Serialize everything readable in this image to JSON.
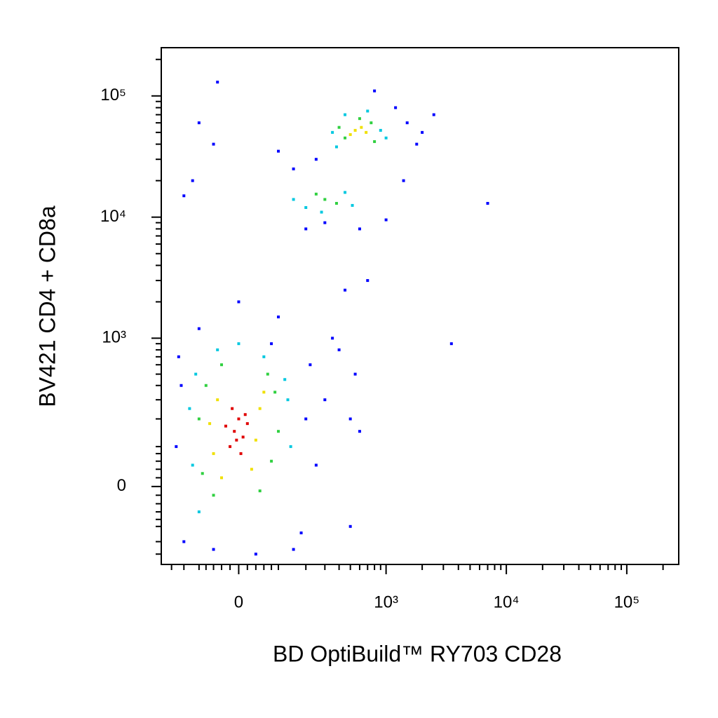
{
  "chart_data": {
    "type": "scatter",
    "x_label": "BD OptiBuild™ RY703 CD28",
    "y_label": "BV421 CD4 + CD8a",
    "scale": "biexponential",
    "cofactor": 120,
    "xlim": [
      -250,
      270000
    ],
    "ylim": [
      -250,
      250000
    ],
    "xticks": [
      0,
      {
        "value": 1000,
        "label": "10³"
      },
      {
        "value": 10000,
        "label": "10⁴"
      },
      {
        "value": 100000,
        "label": "10⁵"
      }
    ],
    "yticks": [
      0,
      {
        "value": 1000,
        "label": "10³"
      },
      {
        "value": 10000,
        "label": "10⁴"
      },
      {
        "value": 100000,
        "label": "10⁵"
      }
    ],
    "xminor_ticks": [
      -200,
      -150,
      -100,
      -80,
      -60,
      -40,
      -20,
      20,
      40,
      60,
      80,
      100,
      200,
      300,
      400,
      500,
      600,
      700,
      800,
      900,
      2000,
      3000,
      4000,
      5000,
      6000,
      7000,
      8000,
      9000,
      20000,
      30000,
      40000,
      50000,
      60000,
      70000,
      80000,
      90000,
      200000
    ],
    "yminor_ticks": [
      -200,
      -150,
      -100,
      -80,
      -60,
      -40,
      -20,
      20,
      40,
      60,
      80,
      100,
      200,
      300,
      400,
      500,
      600,
      700,
      800,
      900,
      2000,
      3000,
      4000,
      5000,
      6000,
      7000,
      8000,
      9000,
      20000,
      30000,
      40000,
      50000,
      60000,
      70000,
      80000,
      90000,
      200000
    ],
    "series": [
      {
        "color": "#0000ff",
        "x": [
          -180,
          -160,
          200,
          250,
          -150,
          180,
          -100,
          100,
          -60,
          40,
          0,
          80,
          -170,
          220,
          300,
          400,
          500,
          600,
          350,
          450,
          700,
          550,
          150,
          250,
          1200,
          1500,
          1800,
          200,
          -120,
          -100,
          300,
          600,
          1000,
          1400,
          2000,
          2500,
          800,
          -60,
          100,
          -150,
          7000,
          3500,
          500,
          150,
          -50
        ],
        "y": [
          100,
          400,
          200,
          50,
          -150,
          -120,
          1200,
          1500,
          -180,
          -200,
          2000,
          900,
          700,
          600,
          300,
          800,
          200,
          150,
          1000,
          2500,
          3000,
          500,
          25000,
          30000,
          80000,
          60000,
          40000,
          8000,
          20000,
          60000,
          9000,
          8000,
          9500,
          20000,
          50000,
          70000,
          110000,
          40000,
          35000,
          15000,
          13000,
          900,
          -100,
          -180,
          130000
        ]
      },
      {
        "color": "#00c8e0",
        "x": [
          -120,
          130,
          -110,
          140,
          -100,
          120,
          -50,
          60,
          0,
          -130,
          350,
          900,
          450,
          1000,
          380,
          700,
          200,
          450,
          280,
          150,
          520
        ],
        "y": [
          50,
          300,
          500,
          100,
          -60,
          450,
          800,
          700,
          900,
          250,
          50000,
          52000,
          70000,
          45000,
          38000,
          75000,
          12000,
          16000,
          11000,
          14000,
          12500
        ]
      },
      {
        "color": "#30d040",
        "x": [
          -90,
          80,
          -80,
          90,
          -100,
          100,
          -60,
          70,
          -40,
          50,
          450,
          750,
          400,
          800,
          600,
          300,
          380,
          250
        ],
        "y": [
          30,
          60,
          400,
          350,
          200,
          150,
          -20,
          500,
          600,
          -10,
          45000,
          60000,
          55000,
          42000,
          65000,
          14000,
          13000,
          15500
        ]
      },
      {
        "color": "#f0e000",
        "x": [
          -60,
          40,
          -50,
          50,
          -40,
          30,
          -70,
          60,
          550,
          620,
          500,
          680
        ],
        "y": [
          80,
          120,
          300,
          250,
          20,
          40,
          180,
          350,
          52000,
          55000,
          48000,
          50000
        ]
      },
      {
        "color": "#e00000",
        "x": [
          -20,
          -10,
          0,
          10,
          -30,
          5,
          -15,
          20,
          -5,
          15
        ],
        "y": [
          100,
          150,
          200,
          130,
          170,
          80,
          250,
          180,
          120,
          220
        ]
      }
    ]
  }
}
